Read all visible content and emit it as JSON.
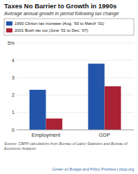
{
  "chart_data": {
    "type": "bar",
    "title": "Taxes No Barrier to Growth in 1990s",
    "subtitle": "Average annual growth in period following tax change",
    "categories": [
      "Employment",
      "GDP"
    ],
    "series": [
      {
        "name": "1993 Clinton tax increase (Aug. ’93 to March ’01)",
        "color": "#2255aa",
        "values": [
          2.3,
          3.8
        ]
      },
      {
        "name": "2001 Bush tax cut (June ’01 to Dec. ’07)",
        "color": "#aa2233",
        "values": [
          0.65,
          2.5
        ]
      }
    ],
    "ylim": [
      0,
      5
    ],
    "yticks": [
      0,
      1,
      2,
      3,
      4,
      {
        "value": 5,
        "label": "5%"
      }
    ],
    "grid": true,
    "legend": "top",
    "annotations": [
      "Source: CBPP calculations from Bureau of Labor Statistics and Bureau of\nEconomic Analysis",
      "Center on Budget and Policy Priorities | cbpp.org"
    ]
  }
}
